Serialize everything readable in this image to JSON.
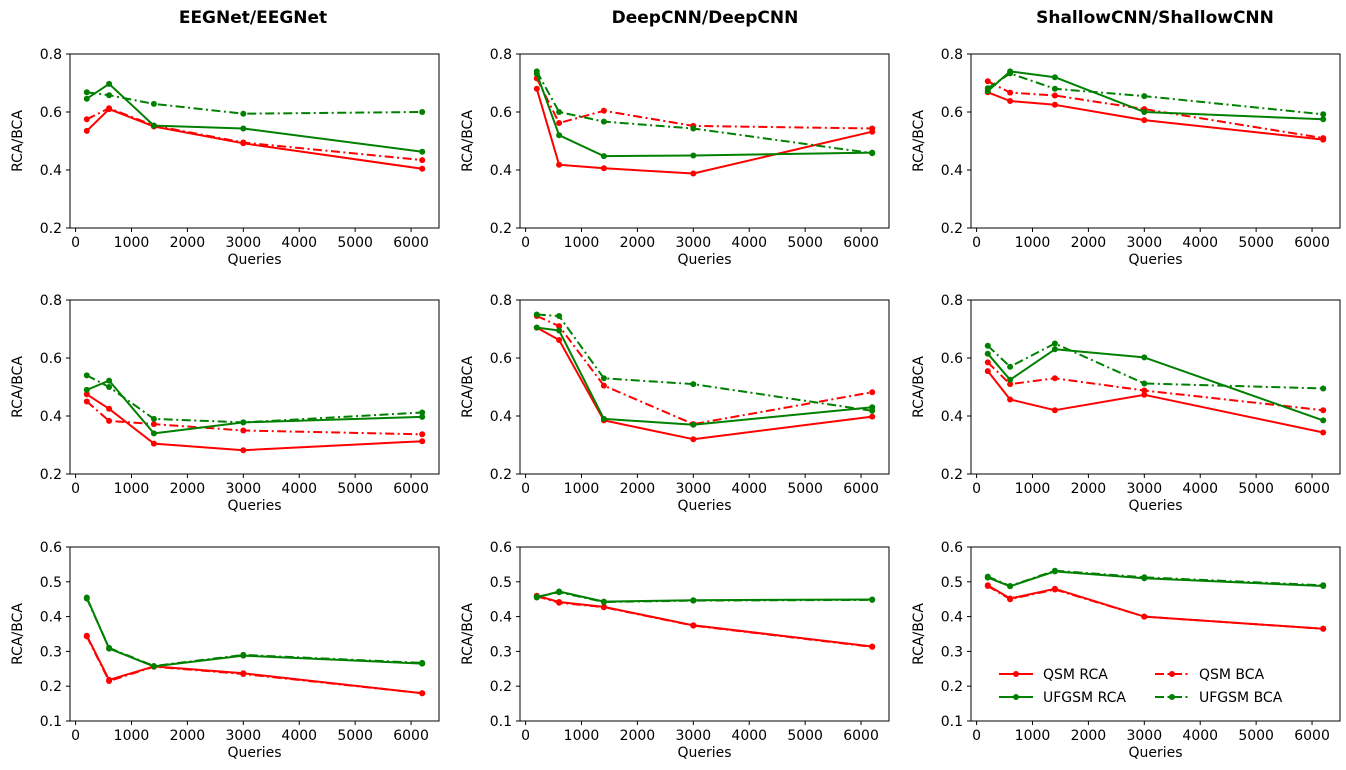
{
  "column_titles": [
    "EEGNet/EEGNet",
    "DeepCNN/DeepCNN",
    "ShallowCNN/ShallowCNN"
  ],
  "styles": {
    "QSM RCA": {
      "color": "#ff0000",
      "dash": "solid"
    },
    "QSM BCA": {
      "color": "#ff0000",
      "dash": "dashdot"
    },
    "UFGSM RCA": {
      "color": "#008000",
      "dash": "solid"
    },
    "UFGSM BCA": {
      "color": "#008000",
      "dash": "dashdot"
    }
  },
  "legend": {
    "placement": "lower-center of bottom-right panel",
    "entries": [
      "QSM RCA",
      "QSM BCA",
      "UFGSM RCA",
      "UFGSM BCA"
    ]
  },
  "chart_data": [
    {
      "type": "line",
      "row": 0,
      "col": 0,
      "xlabel": "Queries",
      "ylabel": "RCA/BCA",
      "xlim": [
        -100,
        6500
      ],
      "ylim": [
        0.2,
        0.8
      ],
      "xticks": [
        "0",
        "1000",
        "2000",
        "3000",
        "4000",
        "5000",
        "6000"
      ],
      "yticks": [
        "0.2",
        "0.4",
        "0.6",
        "0.8"
      ],
      "x": [
        200,
        600,
        1400,
        3000,
        6200
      ],
      "series": [
        {
          "name": "QSM RCA",
          "values": [
            0.535,
            0.61,
            0.55,
            0.492,
            0.404
          ]
        },
        {
          "name": "QSM BCA",
          "values": [
            0.575,
            0.613,
            0.553,
            0.495,
            0.434
          ]
        },
        {
          "name": "UFGSM RCA",
          "values": [
            0.646,
            0.697,
            0.553,
            0.543,
            0.463
          ]
        },
        {
          "name": "UFGSM BCA",
          "values": [
            0.668,
            0.658,
            0.628,
            0.594,
            0.6
          ]
        }
      ]
    },
    {
      "type": "line",
      "row": 0,
      "col": 1,
      "xlabel": "Queries",
      "ylabel": "RCA/BCA",
      "xlim": [
        -100,
        6500
      ],
      "ylim": [
        0.2,
        0.8
      ],
      "xticks": [
        "0",
        "1000",
        "2000",
        "3000",
        "4000",
        "5000",
        "6000"
      ],
      "yticks": [
        "0.2",
        "0.4",
        "0.6",
        "0.8"
      ],
      "x": [
        200,
        600,
        1400,
        3000,
        6200
      ],
      "series": [
        {
          "name": "QSM RCA",
          "values": [
            0.68,
            0.418,
            0.406,
            0.388,
            0.532
          ]
        },
        {
          "name": "QSM BCA",
          "values": [
            0.716,
            0.562,
            0.604,
            0.552,
            0.543
          ]
        },
        {
          "name": "UFGSM RCA",
          "values": [
            0.732,
            0.52,
            0.448,
            0.45,
            0.46
          ]
        },
        {
          "name": "UFGSM BCA",
          "values": [
            0.74,
            0.6,
            0.567,
            0.543,
            0.458
          ]
        }
      ]
    },
    {
      "type": "line",
      "row": 0,
      "col": 2,
      "xlabel": "Queries",
      "ylabel": "RCA/BCA",
      "xlim": [
        -100,
        6500
      ],
      "ylim": [
        0.2,
        0.8
      ],
      "xticks": [
        "0",
        "1000",
        "2000",
        "3000",
        "4000",
        "5000",
        "6000"
      ],
      "yticks": [
        "0.2",
        "0.4",
        "0.6",
        "0.8"
      ],
      "x": [
        200,
        600,
        1400,
        3000,
        6200
      ],
      "series": [
        {
          "name": "QSM RCA",
          "values": [
            0.668,
            0.638,
            0.625,
            0.572,
            0.505
          ]
        },
        {
          "name": "QSM BCA",
          "values": [
            0.706,
            0.667,
            0.657,
            0.61,
            0.51
          ]
        },
        {
          "name": "UFGSM RCA",
          "values": [
            0.672,
            0.74,
            0.72,
            0.6,
            0.575
          ]
        },
        {
          "name": "UFGSM BCA",
          "values": [
            0.682,
            0.733,
            0.68,
            0.655,
            0.592
          ]
        }
      ]
    },
    {
      "type": "line",
      "row": 1,
      "col": 0,
      "xlabel": "Queries",
      "ylabel": "RCA/BCA",
      "xlim": [
        -100,
        6500
      ],
      "ylim": [
        0.2,
        0.8
      ],
      "xticks": [
        "0",
        "1000",
        "2000",
        "3000",
        "4000",
        "5000",
        "6000"
      ],
      "yticks": [
        "0.2",
        "0.4",
        "0.6",
        "0.8"
      ],
      "x": [
        200,
        600,
        1400,
        3000,
        6200
      ],
      "series": [
        {
          "name": "QSM RCA",
          "values": [
            0.475,
            0.425,
            0.305,
            0.282,
            0.313
          ]
        },
        {
          "name": "QSM BCA",
          "values": [
            0.45,
            0.383,
            0.372,
            0.35,
            0.337
          ]
        },
        {
          "name": "UFGSM RCA",
          "values": [
            0.49,
            0.522,
            0.34,
            0.378,
            0.397
          ]
        },
        {
          "name": "UFGSM BCA",
          "values": [
            0.54,
            0.5,
            0.39,
            0.378,
            0.412
          ]
        }
      ]
    },
    {
      "type": "line",
      "row": 1,
      "col": 1,
      "xlabel": "Queries",
      "ylabel": "RCA/BCA",
      "xlim": [
        -100,
        6500
      ],
      "ylim": [
        0.2,
        0.8
      ],
      "xticks": [
        "0",
        "1000",
        "2000",
        "3000",
        "4000",
        "5000",
        "6000"
      ],
      "yticks": [
        "0.2",
        "0.4",
        "0.6",
        "0.8"
      ],
      "x": [
        200,
        600,
        1400,
        3000,
        6200
      ],
      "series": [
        {
          "name": "QSM RCA",
          "values": [
            0.705,
            0.662,
            0.385,
            0.32,
            0.398
          ]
        },
        {
          "name": "QSM BCA",
          "values": [
            0.745,
            0.71,
            0.505,
            0.372,
            0.482
          ]
        },
        {
          "name": "UFGSM RCA",
          "values": [
            0.705,
            0.695,
            0.39,
            0.37,
            0.43
          ]
        },
        {
          "name": "UFGSM BCA",
          "values": [
            0.75,
            0.745,
            0.53,
            0.51,
            0.418
          ]
        }
      ]
    },
    {
      "type": "line",
      "row": 1,
      "col": 2,
      "xlabel": "Queries",
      "ylabel": "RCA/BCA",
      "xlim": [
        -100,
        6500
      ],
      "ylim": [
        0.2,
        0.8
      ],
      "xticks": [
        "0",
        "1000",
        "2000",
        "3000",
        "4000",
        "5000",
        "6000"
      ],
      "yticks": [
        "0.2",
        "0.4",
        "0.6",
        "0.8"
      ],
      "x": [
        200,
        600,
        1400,
        3000,
        6200
      ],
      "series": [
        {
          "name": "QSM RCA",
          "values": [
            0.555,
            0.457,
            0.42,
            0.473,
            0.343
          ]
        },
        {
          "name": "QSM BCA",
          "values": [
            0.585,
            0.51,
            0.53,
            0.488,
            0.42
          ]
        },
        {
          "name": "UFGSM RCA",
          "values": [
            0.615,
            0.525,
            0.63,
            0.602,
            0.385
          ]
        },
        {
          "name": "UFGSM BCA",
          "values": [
            0.642,
            0.57,
            0.65,
            0.512,
            0.495
          ]
        }
      ]
    },
    {
      "type": "line",
      "row": 2,
      "col": 0,
      "xlabel": "Queries",
      "ylabel": "RCA/BCA",
      "xlim": [
        -100,
        6500
      ],
      "ylim": [
        0.1,
        0.6
      ],
      "xticks": [
        "0",
        "1000",
        "2000",
        "3000",
        "4000",
        "5000",
        "6000"
      ],
      "yticks": [
        "0.1",
        "0.2",
        "0.3",
        "0.4",
        "0.5",
        "0.6"
      ],
      "x": [
        200,
        600,
        1400,
        3000,
        6200
      ],
      "series": [
        {
          "name": "QSM RCA",
          "values": [
            0.345,
            0.218,
            0.257,
            0.237,
            0.18
          ]
        },
        {
          "name": "QSM BCA",
          "values": [
            0.343,
            0.215,
            0.256,
            0.235,
            0.18
          ]
        },
        {
          "name": "UFGSM RCA",
          "values": [
            0.455,
            0.308,
            0.257,
            0.288,
            0.265
          ]
        },
        {
          "name": "UFGSM BCA",
          "values": [
            0.452,
            0.31,
            0.258,
            0.29,
            0.267
          ]
        }
      ]
    },
    {
      "type": "line",
      "row": 2,
      "col": 1,
      "xlabel": "Queries",
      "ylabel": "RCA/BCA",
      "xlim": [
        -100,
        6500
      ],
      "ylim": [
        0.1,
        0.6
      ],
      "xticks": [
        "0",
        "1000",
        "2000",
        "3000",
        "4000",
        "5000",
        "6000"
      ],
      "yticks": [
        "0.1",
        "0.2",
        "0.3",
        "0.4",
        "0.5",
        "0.6"
      ],
      "x": [
        200,
        600,
        1400,
        3000,
        6200
      ],
      "series": [
        {
          "name": "QSM RCA",
          "values": [
            0.46,
            0.442,
            0.428,
            0.375,
            0.314
          ]
        },
        {
          "name": "QSM BCA",
          "values": [
            0.458,
            0.44,
            0.427,
            0.374,
            0.313
          ]
        },
        {
          "name": "UFGSM RCA",
          "values": [
            0.455,
            0.472,
            0.443,
            0.447,
            0.449
          ]
        },
        {
          "name": "UFGSM BCA",
          "values": [
            0.457,
            0.47,
            0.442,
            0.446,
            0.448
          ]
        }
      ]
    },
    {
      "type": "line",
      "row": 2,
      "col": 2,
      "xlabel": "Queries",
      "ylabel": "RCA/BCA",
      "xlim": [
        -100,
        6500
      ],
      "ylim": [
        0.1,
        0.6
      ],
      "xticks": [
        "0",
        "1000",
        "2000",
        "3000",
        "4000",
        "5000",
        "6000"
      ],
      "yticks": [
        "0.1",
        "0.2",
        "0.3",
        "0.4",
        "0.5",
        "0.6"
      ],
      "x": [
        200,
        600,
        1400,
        3000,
        6200
      ],
      "series": [
        {
          "name": "QSM RCA",
          "values": [
            0.49,
            0.452,
            0.48,
            0.4,
            0.365
          ]
        },
        {
          "name": "QSM BCA",
          "values": [
            0.488,
            0.45,
            0.478,
            0.4,
            0.365
          ]
        },
        {
          "name": "UFGSM RCA",
          "values": [
            0.512,
            0.487,
            0.53,
            0.51,
            0.488
          ]
        },
        {
          "name": "UFGSM BCA",
          "values": [
            0.515,
            0.488,
            0.532,
            0.513,
            0.49
          ]
        }
      ]
    }
  ]
}
